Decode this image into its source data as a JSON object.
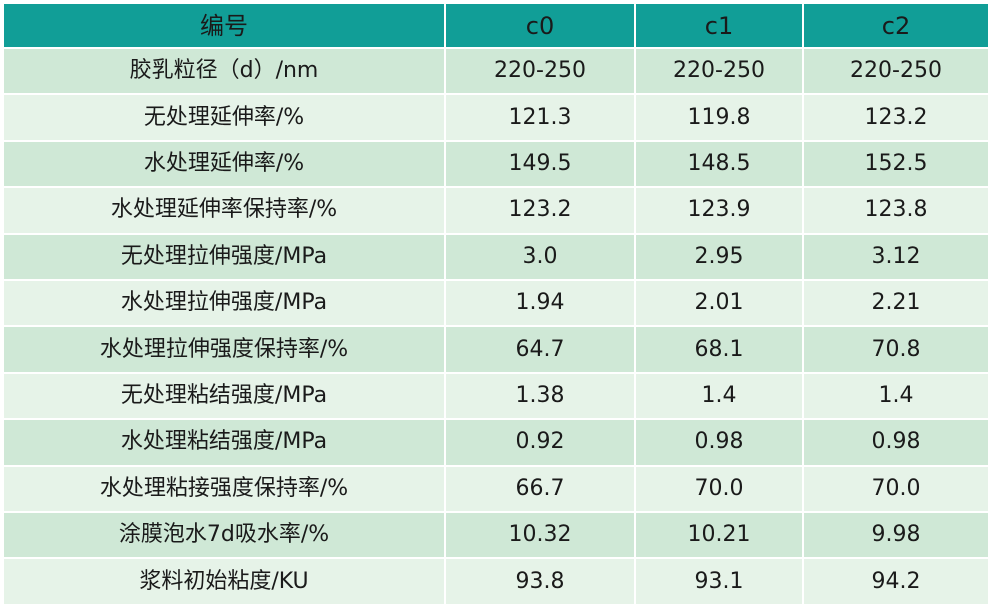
{
  "table": {
    "headers": [
      "编号",
      "c0",
      "c1",
      "c2"
    ],
    "rows": [
      {
        "label": "胶乳粒径（d）/nm",
        "values": [
          "220-250",
          "220-250",
          "220-250"
        ]
      },
      {
        "label": "无处理延伸率/%",
        "values": [
          "121.3",
          "119.8",
          "123.2"
        ]
      },
      {
        "label": "水处理延伸率/%",
        "values": [
          "149.5",
          "148.5",
          "152.5"
        ]
      },
      {
        "label": "水处理延伸率保持率/%",
        "values": [
          "123.2",
          "123.9",
          "123.8"
        ]
      },
      {
        "label": "无处理拉伸强度/MPa",
        "values": [
          "3.0",
          "2.95",
          "3.12"
        ]
      },
      {
        "label": "水处理拉伸强度/MPa",
        "values": [
          "1.94",
          "2.01",
          "2.21"
        ]
      },
      {
        "label": "水处理拉伸强度保持率/%",
        "values": [
          "64.7",
          "68.1",
          "70.8"
        ]
      },
      {
        "label": "无处理粘结强度/MPa",
        "values": [
          "1.38",
          "1.4",
          "1.4"
        ]
      },
      {
        "label": "水处理粘结强度/MPa",
        "values": [
          "0.92",
          "0.98",
          "0.98"
        ]
      },
      {
        "label": "水处理粘接强度保持率/%",
        "values": [
          "66.7",
          "70.0",
          "70.0"
        ]
      },
      {
        "label": "涂膜泡水7d吸水率/%",
        "values": [
          "10.32",
          "10.21",
          "9.98"
        ]
      },
      {
        "label": "浆料初始粘度/KU",
        "values": [
          "93.8",
          "93.1",
          "94.2"
        ]
      }
    ]
  },
  "colors": {
    "header_bg": "#119e97",
    "row_dark": "#cfe8d6",
    "row_light": "#e6f3e8"
  }
}
